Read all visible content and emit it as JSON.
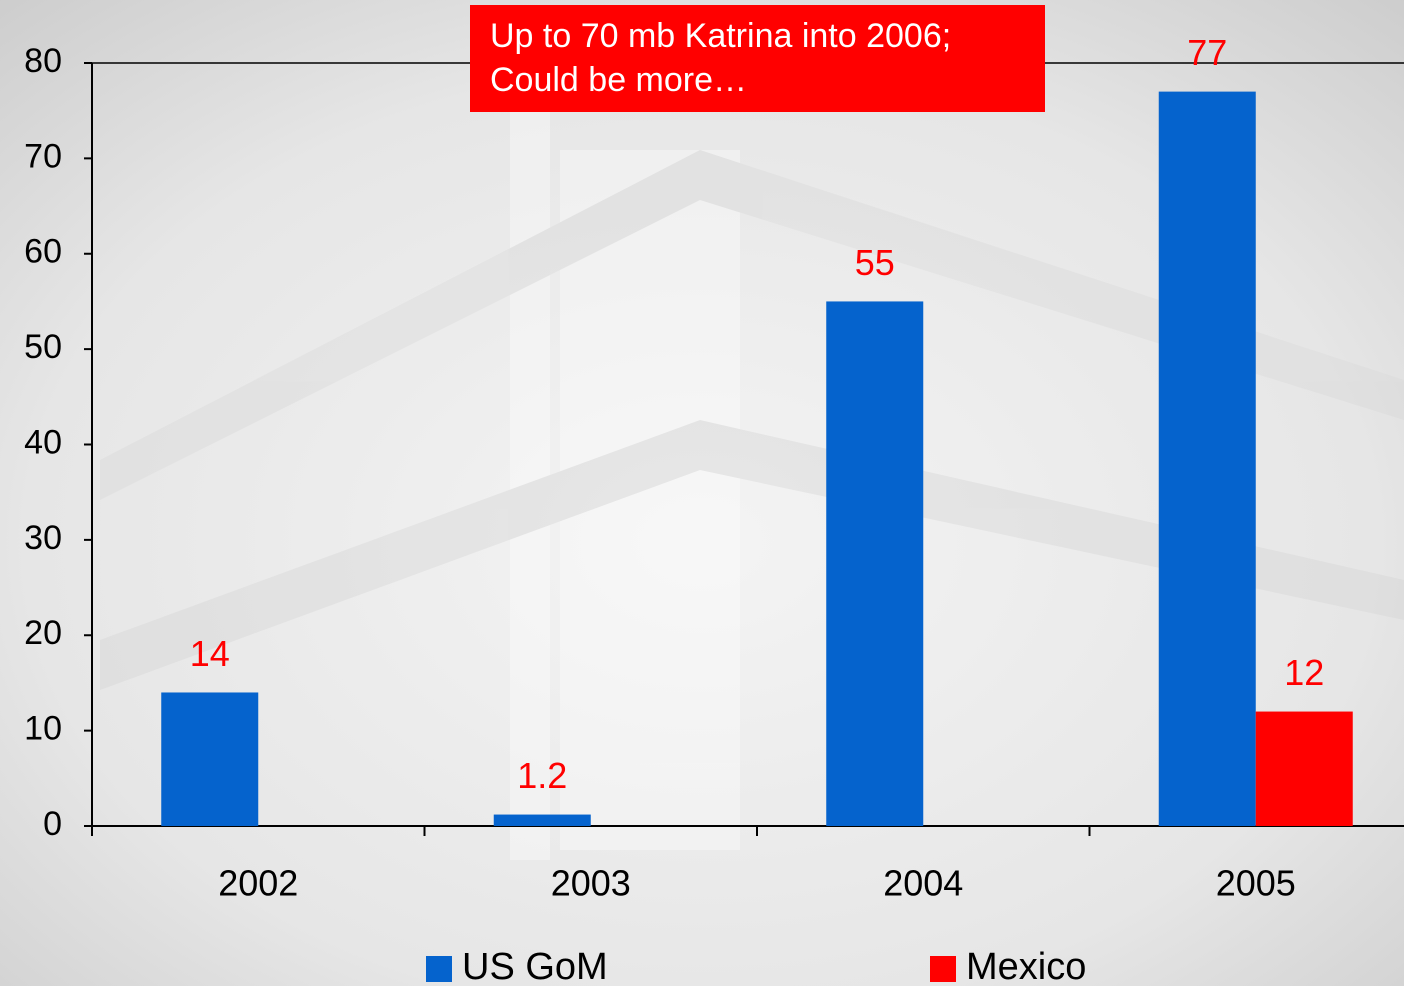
{
  "chart_data": {
    "type": "bar",
    "annotation": [
      "Up to 70 mb Katrina into 2006;",
      "Could be more…"
    ],
    "categories": [
      "2002",
      "2003",
      "2004",
      "2005"
    ],
    "series": [
      {
        "name": "US GoM",
        "color": "#0563cd",
        "values": [
          14,
          1.2,
          55,
          77
        ]
      },
      {
        "name": "Mexico",
        "color": "#ff0000",
        "values": [
          null,
          null,
          null,
          12
        ]
      }
    ],
    "label_color": "#ff0000",
    "ylim": [
      0,
      80
    ],
    "yticks": [
      0,
      10,
      20,
      30,
      40,
      50,
      60,
      70,
      80
    ],
    "legend": "bottom"
  }
}
